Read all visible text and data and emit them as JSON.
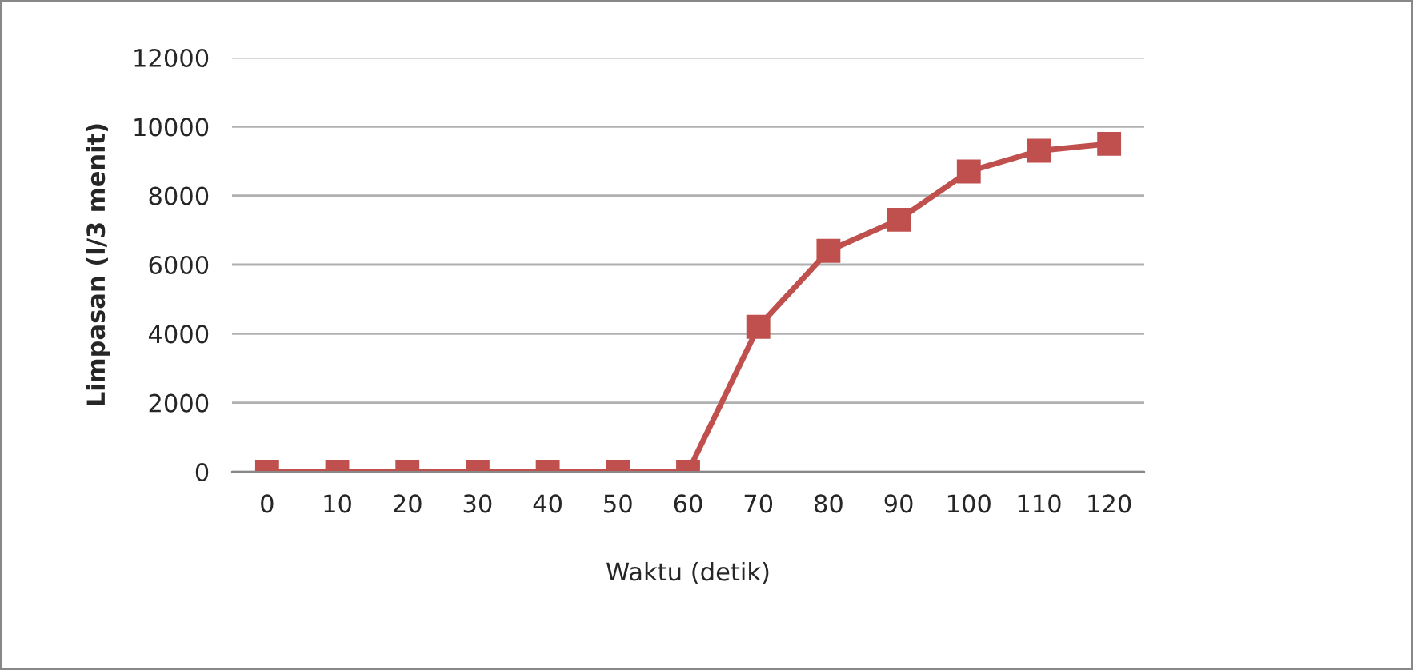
{
  "chart_data": {
    "type": "line",
    "xlabel": "Waktu (detik)",
    "ylabel": "Limpasan (l/3 menit)",
    "categories": [
      "0",
      "10",
      "20",
      "30",
      "40",
      "50",
      "60",
      "70",
      "80",
      "90",
      "100",
      "110",
      "120"
    ],
    "series": [
      {
        "color": "#c0504d",
        "values": [
          0,
          0,
          0,
          0,
          0,
          0,
          0,
          4200,
          6400,
          7300,
          8700,
          9300,
          9500
        ]
      }
    ],
    "ylim": [
      0,
      12000
    ],
    "yticks": [
      0,
      2000,
      4000,
      6000,
      8000,
      10000,
      12000
    ],
    "grid": "y",
    "marker": "square",
    "line_style": "solid"
  }
}
